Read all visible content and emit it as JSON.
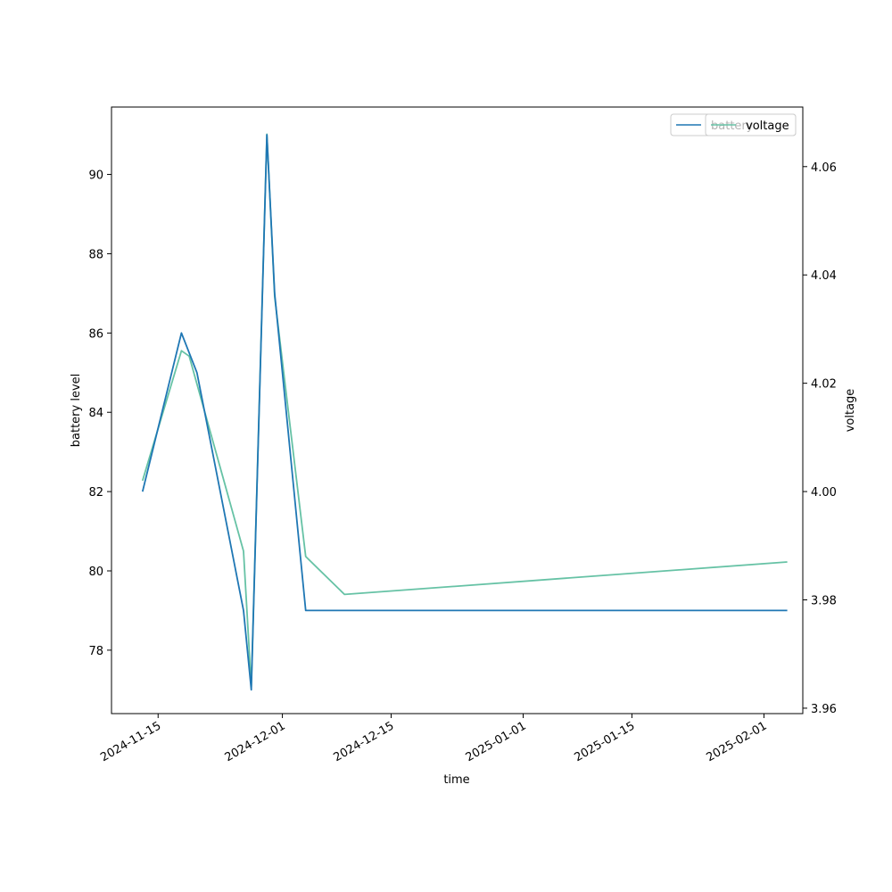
{
  "chart_data": {
    "type": "line",
    "xlabel": "time",
    "ylabel_left": "battery level",
    "ylabel_right": "voltage",
    "x_ticks": [
      "2024-11-15",
      "2024-12-01",
      "2024-12-15",
      "2025-01-01",
      "2025-01-15",
      "2025-02-01"
    ],
    "xlim": [
      "2024-11-09",
      "2025-02-06"
    ],
    "ylim_left": [
      76.4,
      91.7
    ],
    "ylim_right": [
      3.959,
      4.071
    ],
    "y_ticks_left": [
      78,
      80,
      82,
      84,
      86,
      88,
      90
    ],
    "y_ticks_right": [
      3.96,
      3.98,
      4.0,
      4.02,
      4.04,
      4.06
    ],
    "legend_placement": "upper-right (overlapping)",
    "grid": false,
    "series": [
      {
        "name": "battery",
        "axis": "left",
        "color": "#1f77b4",
        "x": [
          "2024-11-13",
          "2024-11-18",
          "2024-11-20",
          "2024-11-26",
          "2024-11-27",
          "2024-11-29",
          "2024-11-30",
          "2024-12-04",
          "2025-02-04"
        ],
        "values": [
          82,
          86,
          85,
          79,
          77,
          91,
          87,
          79,
          79
        ]
      },
      {
        "name": "voltage",
        "axis": "right",
        "color": "#66c2a5",
        "x": [
          "2024-11-13",
          "2024-11-18",
          "2024-11-19",
          "2024-11-26",
          "2024-11-27",
          "2024-11-29",
          "2024-11-30",
          "2024-12-04",
          "2024-12-09",
          "2025-02-04"
        ],
        "values": [
          4.002,
          4.026,
          4.025,
          3.989,
          3.964,
          4.066,
          4.036,
          3.988,
          3.981,
          3.987
        ]
      }
    ]
  }
}
